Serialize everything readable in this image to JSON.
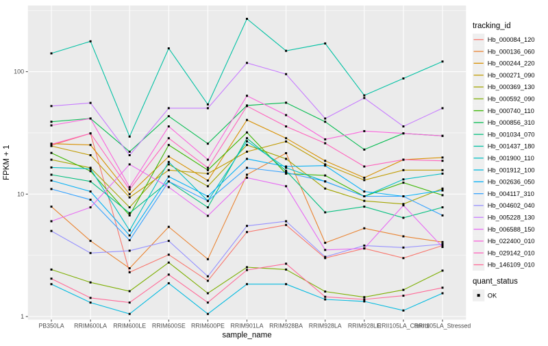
{
  "chart_data": {
    "type": "line",
    "title": "",
    "xlabel": "sample_name",
    "ylabel": "FPKM + 1",
    "y_scale": "log10",
    "ylim": [
      1,
      350
    ],
    "y_ticks": [
      1,
      10,
      100
    ],
    "y_minor_gridlines": [
      3.1623,
      31.623,
      316.23
    ],
    "grid": true,
    "panel_bg": "#EBEBEB",
    "grid_color": "#FFFFFF",
    "point_shape": "filled-square",
    "point_color": "#000000",
    "legend_position": "right",
    "categories": [
      "PB350LA",
      "RRIM600LA",
      "RRIM600LE",
      "RRIM600SE",
      "RRIM600PE",
      "RRIM901LA",
      "RRIM928BA",
      "RRIM928LA",
      "RRIM928LE",
      "RRII105LA_Control",
      "RRII105LA_Stressed"
    ],
    "series": [
      {
        "name": "Hb_000084_120",
        "color": "#F8766D",
        "values": [
          25.0,
          31.3,
          2.3,
          3.2,
          1.96,
          4.9,
          5.6,
          3.0,
          3.6,
          3.0,
          3.8
        ]
      },
      {
        "name": "Hb_000136_060",
        "color": "#EA8331",
        "values": [
          7.9,
          4.15,
          2.48,
          5.4,
          2.94,
          14.4,
          21.6,
          4.0,
          5.26,
          4.52,
          4.06
        ]
      },
      {
        "name": "Hb_000244_220",
        "color": "#D89000",
        "values": [
          25.8,
          25.2,
          10.0,
          20.3,
          12.9,
          40.3,
          28.6,
          18.7,
          13.6,
          19.1,
          19.9
        ]
      },
      {
        "name": "Hb_000271_090",
        "color": "#C09B00",
        "values": [
          24.7,
          20.8,
          9.4,
          15.7,
          14.7,
          22.2,
          26.9,
          17.5,
          13.0,
          15.7,
          15.7
        ]
      },
      {
        "name": "Hb_000369_130",
        "color": "#A3A500",
        "values": [
          19.1,
          16.4,
          7.8,
          17.5,
          11.6,
          25.2,
          19.4,
          11.1,
          8.8,
          8.3,
          11.1
        ]
      },
      {
        "name": "Hb_000592_090",
        "color": "#7CAE00",
        "values": [
          2.42,
          1.9,
          1.61,
          2.76,
          1.55,
          2.53,
          2.42,
          1.6,
          1.44,
          1.65,
          2.37
        ]
      },
      {
        "name": "Hb_000740_110",
        "color": "#39B600",
        "values": [
          21.7,
          15.4,
          6.7,
          25.2,
          15.7,
          31.9,
          14.7,
          14.2,
          9.6,
          12.4,
          9.8
        ]
      },
      {
        "name": "Hb_000856_310",
        "color": "#00BB4E",
        "values": [
          39.0,
          41.5,
          22.2,
          43.3,
          25.8,
          53.0,
          55.8,
          39.0,
          23.1,
          31.3,
          29.9
        ]
      },
      {
        "name": "Hb_001034_070",
        "color": "#00BF7D",
        "values": [
          14.4,
          12.7,
          7.0,
          12.7,
          7.8,
          28.6,
          15.5,
          7.1,
          7.9,
          6.4,
          7.8
        ]
      },
      {
        "name": "Hb_001437_180",
        "color": "#00C1A3",
        "values": [
          141,
          177,
          29.5,
          155,
          54,
          270,
          148,
          170,
          64,
          88,
          121
        ]
      },
      {
        "name": "Hb_001900_110",
        "color": "#00BFC4",
        "values": [
          16.5,
          16.1,
          5.05,
          18.3,
          8.8,
          27.0,
          16.4,
          12.7,
          9.6,
          13.2,
          14.7
        ]
      },
      {
        "name": "Hb_001912_100",
        "color": "#00BAE0",
        "values": [
          1.84,
          1.3,
          1.05,
          1.87,
          1.05,
          1.84,
          1.84,
          1.38,
          1.33,
          1.12,
          1.55
        ]
      },
      {
        "name": "Hb_002636_050",
        "color": "#00B0F6",
        "values": [
          12.9,
          10.5,
          4.6,
          13.9,
          9.6,
          19.4,
          16.8,
          17.1,
          10.5,
          9.6,
          10.7
        ]
      },
      {
        "name": "Hb_004117_310",
        "color": "#35A2FF",
        "values": [
          11.0,
          9.0,
          4.2,
          12.7,
          8.8,
          16.4,
          15.0,
          12.7,
          9.6,
          9.6,
          6.7
        ]
      },
      {
        "name": "Hb_004602_040",
        "color": "#9590FF",
        "values": [
          5.0,
          3.3,
          3.45,
          4.15,
          2.13,
          5.5,
          6.0,
          3.07,
          3.8,
          3.66,
          3.9
        ]
      },
      {
        "name": "Hb_005228_130",
        "color": "#C77CFF",
        "values": [
          52.4,
          55.6,
          20.8,
          50.3,
          50.3,
          118,
          95.5,
          41.4,
          61.0,
          35.7,
          50.3
        ]
      },
      {
        "name": "Hb_006588_150",
        "color": "#E76BF3",
        "values": [
          6.0,
          7.8,
          17.5,
          11.4,
          6.65,
          13.6,
          11.6,
          3.5,
          3.6,
          8.1,
          3.7
        ]
      },
      {
        "name": "Hb_022400_010",
        "color": "#FA62DB",
        "values": [
          36.4,
          41.4,
          11.4,
          35.7,
          19.1,
          63.5,
          44.2,
          28.0,
          32.7,
          31.3,
          29.9
        ]
      },
      {
        "name": "Hb_029142_010",
        "color": "#FF62BC",
        "values": [
          25.5,
          31.3,
          10.9,
          28.6,
          16.4,
          52.4,
          35.7,
          26.0,
          16.8,
          19.1,
          18.7
        ]
      },
      {
        "name": "Hb_146109_010",
        "color": "#FF6A98",
        "values": [
          2.04,
          1.42,
          1.3,
          2.2,
          1.3,
          2.4,
          2.7,
          1.45,
          1.38,
          1.48,
          1.72
        ]
      }
    ]
  },
  "legend": {
    "tracking_title": "tracking_id",
    "quant_title": "quant_status",
    "quant_items": [
      {
        "label": "OK",
        "marker_color": "#000000"
      }
    ]
  }
}
